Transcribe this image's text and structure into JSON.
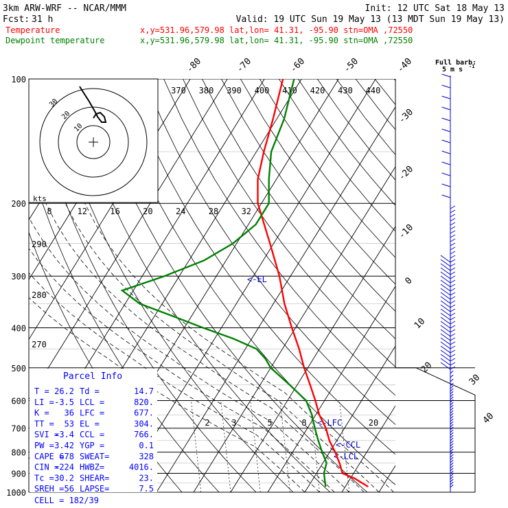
{
  "header": {
    "model": "3km ARW-WRF -- NCAR/MMM",
    "init": "Init: 12 UTC Sat 18 May 13",
    "fcst_label": "Fcst:",
    "fcst_value": "31 h",
    "valid": "Valid: 19 UTC Sun 19 May 13 (13 MDT Sun 19 May 13)",
    "temp_label": "Temperature",
    "temp_info": "x,y=531.96,579.98   lat,lon= 41.31, -95.90   stn=OMA ,72550",
    "dew_label": "Dewpoint temperature",
    "dew_info": "x,y=531.96,579.98   lat,lon= 41.31, -95.90   stn=OMA ,72550"
  },
  "colors": {
    "temperature": "#ff0000",
    "dewpoint": "#008000",
    "parcel_box_text": "#0000ff",
    "wind": "#0000cc",
    "grid": "#000000"
  },
  "chart_data": {
    "type": "line",
    "title": "",
    "xlabel": "",
    "ylabel": "",
    "y_scale": "log-pressure",
    "ylim_hPa": [
      1000,
      100
    ],
    "pressure_levels": [
      "100",
      "200",
      "300",
      "400",
      "500",
      "600",
      "700",
      "800",
      "900",
      "1000"
    ],
    "isotherm_labels": [
      "-80",
      "-70",
      "-60",
      "-50",
      "-40",
      "-30",
      "-20",
      "-10",
      "0",
      "10",
      "20",
      "30",
      "40"
    ],
    "theta_labels_top": [
      "370",
      "380",
      "390",
      "400",
      "410",
      "420",
      "430",
      "440"
    ],
    "theta_labels_left": [
      "290",
      "280",
      "270"
    ],
    "mixing_ratio_labels": [
      "2",
      "3",
      "5",
      "8",
      "20"
    ],
    "upper_scale_labels": [
      "8",
      "12",
      "16",
      "20",
      "24",
      "28",
      "32"
    ],
    "series": [
      {
        "name": "Temperature",
        "points_hPa_C": [
          [
            970,
            26.2
          ],
          [
            925,
            21
          ],
          [
            900,
            17
          ],
          [
            850,
            14.5
          ],
          [
            800,
            11.5
          ],
          [
            750,
            8
          ],
          [
            700,
            5
          ],
          [
            650,
            1
          ],
          [
            600,
            -2.5
          ],
          [
            550,
            -6.5
          ],
          [
            500,
            -11
          ],
          [
            450,
            -15.5
          ],
          [
            400,
            -21
          ],
          [
            350,
            -27
          ],
          [
            300,
            -33
          ],
          [
            250,
            -41
          ],
          [
            200,
            -51
          ],
          [
            175,
            -55
          ],
          [
            150,
            -58
          ],
          [
            125,
            -61
          ],
          [
            100,
            -65
          ]
        ]
      },
      {
        "name": "Dewpoint temperature",
        "points_hPa_C": [
          [
            970,
            14.7
          ],
          [
            925,
            13
          ],
          [
            900,
            12
          ],
          [
            850,
            11
          ],
          [
            800,
            8
          ],
          [
            750,
            5
          ],
          [
            700,
            2
          ],
          [
            650,
            -1
          ],
          [
            600,
            -5
          ],
          [
            550,
            -12
          ],
          [
            500,
            -20
          ],
          [
            475,
            -23
          ],
          [
            450,
            -27
          ],
          [
            425,
            -35
          ],
          [
            400,
            -45
          ],
          [
            375,
            -55
          ],
          [
            350,
            -66
          ],
          [
            325,
            -73
          ],
          [
            300,
            -64
          ],
          [
            275,
            -56
          ],
          [
            250,
            -51
          ],
          [
            225,
            -48
          ],
          [
            200,
            -48
          ],
          [
            175,
            -52
          ],
          [
            150,
            -56
          ],
          [
            125,
            -58
          ],
          [
            100,
            -62
          ]
        ]
      }
    ],
    "annotations": [
      "<-EL",
      "<-LFC",
      "<-CCL",
      "<-LCL"
    ],
    "wind_legend": {
      "title": "Full barb:",
      "value": "5 m s",
      "superscript": "-1"
    },
    "hodograph": {
      "units": "kts",
      "ring_labels": [
        "10",
        "20",
        "30"
      ]
    },
    "parcel_info": {
      "title": "Parcel Info",
      "rows": [
        [
          "T  =",
          "26.2",
          "Td  =",
          "14.7"
        ],
        [
          "LI =",
          "-3.5",
          "LCL =",
          "820."
        ],
        [
          "K  =",
          "36",
          "LFC =",
          "677."
        ],
        [
          "TT =",
          "53",
          "EL  =",
          "304."
        ],
        [
          "SVI =",
          "-3.4",
          "CCL =",
          "766."
        ],
        [
          "PW =",
          "3.42",
          "YGP =",
          "0.1"
        ],
        [
          "CAPE =",
          "678",
          "SWEAT=",
          "328"
        ],
        [
          "CIN =",
          "-224",
          "HWBZ=",
          "4016."
        ],
        [
          "Tc =",
          "30.2",
          "SHEAR=",
          "23."
        ],
        [
          "SREH =",
          "56",
          "LAPSE=",
          "7.5"
        ]
      ],
      "cell": "CELL = 182/39"
    }
  }
}
